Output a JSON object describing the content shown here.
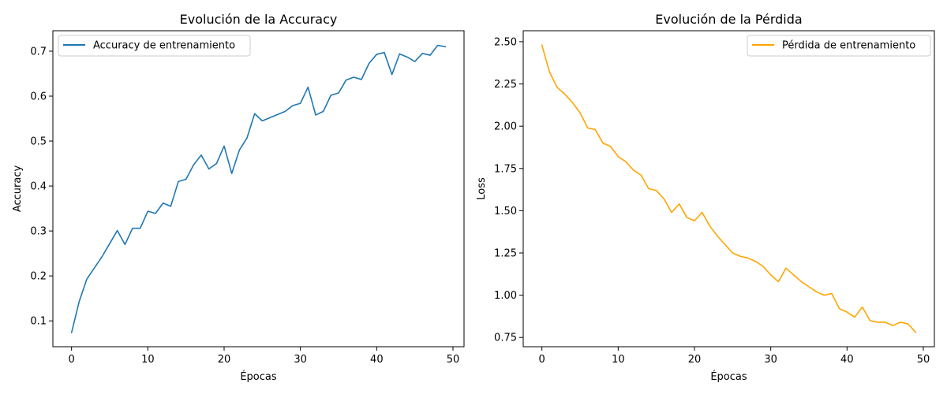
{
  "chart_data": [
    {
      "type": "line",
      "title": "Evolución de la Accuracy",
      "xlabel": "Épocas",
      "ylabel": "Accuracy",
      "xlim": [
        -2.45,
        51.45
      ],
      "ylim": [
        0.0425,
        0.7455
      ],
      "xticks": [
        0,
        10,
        20,
        30,
        40,
        50
      ],
      "yticks": [
        0.1,
        0.2,
        0.3,
        0.4,
        0.5,
        0.6,
        0.7
      ],
      "grid": false,
      "legend_position": "upper-left",
      "series": [
        {
          "name": "Accuracy de entrenamiento",
          "color": "#1f77b4",
          "x": [
            0,
            1,
            2,
            3,
            4,
            5,
            6,
            7,
            8,
            9,
            10,
            11,
            12,
            13,
            14,
            15,
            16,
            17,
            18,
            19,
            20,
            21,
            22,
            23,
            24,
            25,
            26,
            27,
            28,
            29,
            30,
            31,
            32,
            33,
            34,
            35,
            36,
            37,
            38,
            39,
            40,
            41,
            42,
            43,
            44,
            45,
            46,
            47,
            48,
            49
          ],
          "y": [
            0.074,
            0.143,
            0.193,
            0.218,
            0.243,
            0.272,
            0.301,
            0.27,
            0.306,
            0.306,
            0.344,
            0.339,
            0.362,
            0.355,
            0.41,
            0.415,
            0.447,
            0.469,
            0.438,
            0.45,
            0.489,
            0.428,
            0.48,
            0.507,
            0.561,
            0.545,
            0.552,
            0.559,
            0.566,
            0.579,
            0.584,
            0.62,
            0.558,
            0.566,
            0.602,
            0.607,
            0.636,
            0.642,
            0.637,
            0.673,
            0.693,
            0.697,
            0.648,
            0.694,
            0.687,
            0.677,
            0.695,
            0.691,
            0.713,
            0.71
          ]
        }
      ]
    },
    {
      "type": "line",
      "title": "Evolución de la Pérdida",
      "xlabel": "Épocas",
      "ylabel": "Loss",
      "xlim": [
        -2.45,
        51.45
      ],
      "ylim": [
        0.695,
        2.565
      ],
      "xticks": [
        0,
        10,
        20,
        30,
        40,
        50
      ],
      "yticks": [
        0.75,
        1.0,
        1.25,
        1.5,
        1.75,
        2.0,
        2.25,
        2.5
      ],
      "grid": false,
      "legend_position": "upper-right",
      "series": [
        {
          "name": "Pérdida de entrenamiento",
          "color": "#ffa500",
          "x": [
            0,
            1,
            2,
            3,
            4,
            5,
            6,
            7,
            8,
            9,
            10,
            11,
            12,
            13,
            14,
            15,
            16,
            17,
            18,
            19,
            20,
            21,
            22,
            23,
            24,
            25,
            26,
            27,
            28,
            29,
            30,
            31,
            32,
            33,
            34,
            35,
            36,
            37,
            38,
            39,
            40,
            41,
            42,
            43,
            44,
            45,
            46,
            47,
            48,
            49
          ],
          "y": [
            2.48,
            2.32,
            2.23,
            2.19,
            2.14,
            2.08,
            1.99,
            1.98,
            1.9,
            1.88,
            1.82,
            1.79,
            1.74,
            1.71,
            1.63,
            1.62,
            1.57,
            1.49,
            1.54,
            1.46,
            1.44,
            1.49,
            1.41,
            1.35,
            1.3,
            1.25,
            1.23,
            1.22,
            1.2,
            1.17,
            1.12,
            1.08,
            1.16,
            1.12,
            1.08,
            1.05,
            1.02,
            1.0,
            1.01,
            0.92,
            0.9,
            0.87,
            0.93,
            0.85,
            0.84,
            0.84,
            0.82,
            0.84,
            0.83,
            0.78
          ]
        }
      ]
    }
  ]
}
